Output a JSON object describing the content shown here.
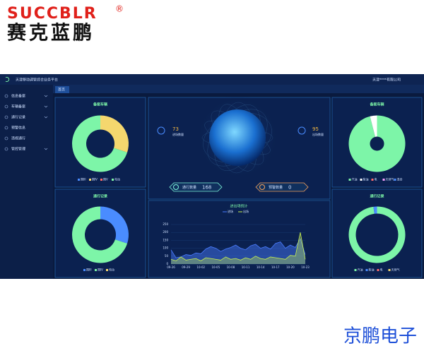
{
  "header": {
    "brand": "SUCCBLR",
    "registered": "®",
    "brand_cn": "赛克蓝鹏"
  },
  "app": {
    "title": "天津移动调管综合业务平台",
    "company": "天津****有限公司",
    "tab": "首页",
    "menu": [
      "信息备案",
      "车辆备案",
      "通行记录",
      "预警信息",
      "违规通行",
      "管控管理"
    ]
  },
  "panels": {
    "vehicles_left": {
      "title": "备案车辆",
      "series": [
        {
          "name": "国III",
          "color": "#4a8cff",
          "value": 0
        },
        {
          "name": "国IV",
          "color": "#f5d76e",
          "value": 30
        },
        {
          "name": "国V",
          "color": "#ff6b6b",
          "value": 0
        },
        {
          "name": "电动",
          "color": "#7df5a8",
          "value": 70
        }
      ]
    },
    "passes_left": {
      "title": "通行记录",
      "series": [
        {
          "name": "国III",
          "color": "#4a8cff",
          "value": 30
        },
        {
          "name": "国IV",
          "color": "#7df5a8",
          "value": 70
        },
        {
          "name": "电动",
          "color": "#f5d76e",
          "value": 0
        }
      ]
    },
    "vehicles_right": {
      "title": "备案车辆",
      "series": [
        {
          "name": "汽油",
          "color": "#7df5a8",
          "value": 96
        },
        {
          "name": "柴油",
          "color": "#ffffff",
          "value": 4
        },
        {
          "name": "电",
          "color": "#ff6b6b",
          "value": 0
        },
        {
          "name": "天然气",
          "color": "#f5a0ff",
          "value": 0
        },
        {
          "name": "混合",
          "color": "#4a8cff",
          "value": 0
        }
      ]
    },
    "passes_right": {
      "title": "通行记录",
      "series": [
        {
          "name": "汽油",
          "color": "#7df5a8",
          "value": 98
        },
        {
          "name": "柴油",
          "color": "#4a8cff",
          "value": 2
        },
        {
          "name": "电",
          "color": "#ff6b6b",
          "value": 0
        },
        {
          "name": "天然气",
          "color": "#f5d76e",
          "value": 0
        }
      ]
    }
  },
  "stats": {
    "in_value": 73,
    "in_label": "进场数量",
    "out_value": 95,
    "out_label": "出场数量",
    "pass_label": "通行数量",
    "pass_value": 168,
    "warn_label": "预警数量",
    "warn_value": 0
  },
  "traffic": {
    "title": "进出场统计",
    "ylim": [
      0,
      250
    ],
    "yticks": [
      0,
      50,
      100,
      150,
      200,
      250
    ],
    "x": [
      "09-26",
      null,
      null,
      "09-29",
      null,
      null,
      "10-02",
      null,
      null,
      "10-05",
      null,
      null,
      "10-08",
      null,
      null,
      "10-11",
      null,
      null,
      "10-14",
      null,
      null,
      "10-17",
      null,
      null,
      "10-20",
      null,
      null,
      "10-23"
    ],
    "series": [
      {
        "name": "进场",
        "color": "#4a7cff",
        "values": [
          90,
          40,
          45,
          60,
          55,
          70,
          65,
          95,
          110,
          100,
          80,
          95,
          105,
          120,
          100,
          90,
          115,
          125,
          100,
          110,
          95,
          130,
          140,
          100,
          120,
          105,
          160,
          60
        ]
      },
      {
        "name": "出场",
        "color": "#c8f050",
        "values": [
          30,
          20,
          45,
          25,
          30,
          35,
          20,
          40,
          35,
          30,
          25,
          45,
          30,
          35,
          25,
          40,
          30,
          50,
          35,
          30,
          45,
          40,
          35,
          30,
          55,
          50,
          200,
          30
        ]
      }
    ]
  },
  "footer": {
    "brand": "京鹏电子"
  }
}
